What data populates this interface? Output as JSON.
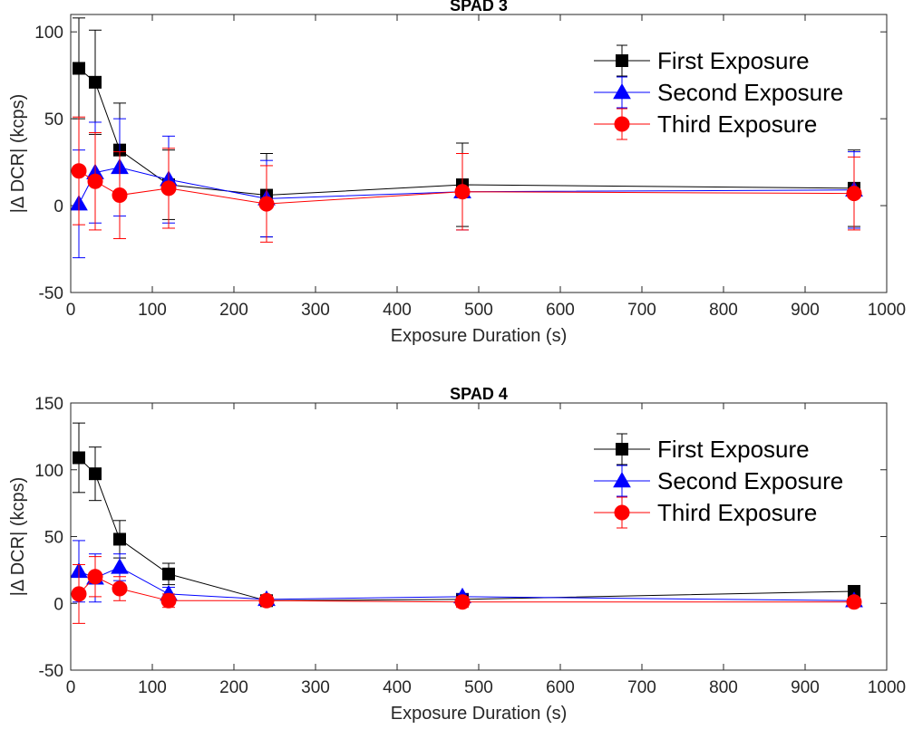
{
  "chart_data": [
    {
      "type": "line",
      "title": "SPAD 3",
      "xlabel": "Exposure Duration (s)",
      "ylabel": "|Δ DCR| (kcps)",
      "xlim": [
        0,
        1000
      ],
      "ylim": [
        -50,
        110
      ],
      "xticks": [
        0,
        100,
        200,
        300,
        400,
        500,
        600,
        700,
        800,
        900,
        1000
      ],
      "yticks": [
        -50,
        0,
        50,
        100
      ],
      "legend_position": "top-right",
      "series": [
        {
          "name": "First Exposure",
          "color": "#000000",
          "marker": "square",
          "x": [
            10,
            30,
            60,
            120,
            240,
            480,
            960
          ],
          "y": [
            79,
            71,
            32,
            12,
            6,
            12,
            10
          ],
          "err": [
            29,
            30,
            27,
            20,
            24,
            24,
            22
          ]
        },
        {
          "name": "Second Exposure",
          "color": "#0000ff",
          "marker": "triangle",
          "x": [
            10,
            30,
            60,
            120,
            240,
            480,
            960
          ],
          "y": [
            1,
            19,
            22,
            15,
            4,
            8,
            9
          ],
          "err": [
            31,
            29,
            28,
            25,
            22,
            22,
            22
          ]
        },
        {
          "name": "Third Exposure",
          "color": "#ff0000",
          "marker": "circle",
          "x": [
            10,
            30,
            60,
            120,
            240,
            480,
            960
          ],
          "y": [
            20,
            14,
            6,
            10,
            1,
            8,
            7
          ],
          "err": [
            31,
            28,
            25,
            23,
            22,
            22,
            21
          ]
        }
      ]
    },
    {
      "type": "line",
      "title": "SPAD 4",
      "xlabel": "Exposure Duration (s)",
      "ylabel": "|Δ DCR| (kcps)",
      "xlim": [
        0,
        1000
      ],
      "ylim": [
        -50,
        150
      ],
      "xticks": [
        0,
        100,
        200,
        300,
        400,
        500,
        600,
        700,
        800,
        900,
        1000
      ],
      "yticks": [
        -50,
        0,
        50,
        100,
        150
      ],
      "legend_position": "top-right",
      "series": [
        {
          "name": "First Exposure",
          "color": "#000000",
          "marker": "square",
          "x": [
            10,
            30,
            60,
            120,
            240,
            480,
            960
          ],
          "y": [
            109,
            97,
            48,
            22,
            2,
            3,
            9
          ],
          "err": [
            26,
            20,
            14,
            8,
            3,
            3,
            4
          ]
        },
        {
          "name": "Second Exposure",
          "color": "#0000ff",
          "marker": "triangle",
          "x": [
            10,
            30,
            60,
            120,
            240,
            480,
            960
          ],
          "y": [
            24,
            19,
            27,
            7,
            3,
            5,
            2
          ],
          "err": [
            23,
            18,
            10,
            5,
            2,
            2,
            2
          ]
        },
        {
          "name": "Third Exposure",
          "color": "#ff0000",
          "marker": "circle",
          "x": [
            10,
            30,
            60,
            120,
            240,
            480,
            960
          ],
          "y": [
            7,
            20,
            11,
            2,
            2,
            1,
            1
          ],
          "err": [
            22,
            15,
            9,
            5,
            2,
            4,
            3
          ]
        }
      ]
    }
  ]
}
